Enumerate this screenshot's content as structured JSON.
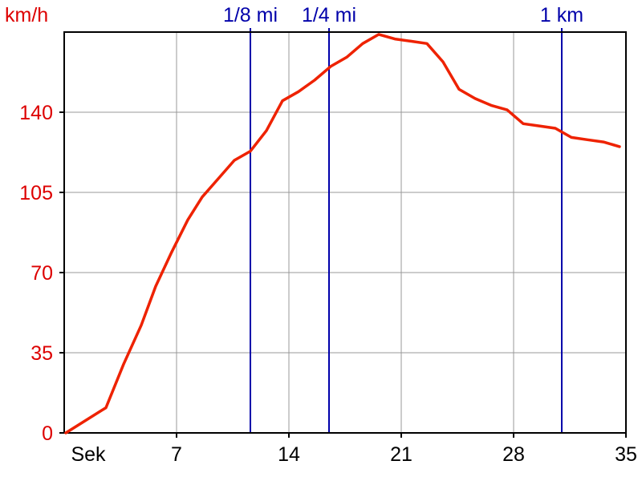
{
  "chart_data": {
    "type": "line",
    "ylabel": "km/h",
    "x_axis_name": "Sek",
    "xlim": [
      0,
      35
    ],
    "ylim": [
      0,
      175
    ],
    "x_ticks": [
      7,
      14,
      21,
      28,
      35
    ],
    "y_ticks": [
      0,
      35,
      70,
      105,
      140
    ],
    "grid": true,
    "colors": {
      "line": "#ee2200",
      "markers": "#0000aa",
      "y_text": "#dd0000",
      "grid": "#999999"
    },
    "markers": [
      {
        "label": "1/8 mi",
        "x": 11.6
      },
      {
        "label": "1/4 mi",
        "x": 16.5
      },
      {
        "label": "1 km",
        "x": 31.0
      }
    ],
    "series": [
      {
        "x": [
          0.1,
          2.6,
          3.7,
          4.8,
          5.7,
          6.7,
          7.7,
          8.6,
          9.6,
          10.6,
          11.6,
          12.6,
          13.6,
          14.6,
          15.6,
          16.6,
          17.6,
          18.6,
          19.6,
          20.6,
          21.6,
          22.6,
          23.6,
          24.6,
          25.6,
          26.6,
          27.6,
          28.6,
          29.6,
          30.6,
          31.6,
          32.6,
          33.6,
          34.6
        ],
        "y": [
          0,
          11,
          30,
          47,
          64,
          79,
          93,
          103,
          111,
          119,
          123,
          132,
          145,
          149,
          154,
          160,
          164,
          170,
          174,
          172,
          171,
          170,
          162,
          150,
          146,
          143,
          141,
          135,
          134,
          133,
          129,
          128,
          127,
          125
        ]
      }
    ]
  }
}
